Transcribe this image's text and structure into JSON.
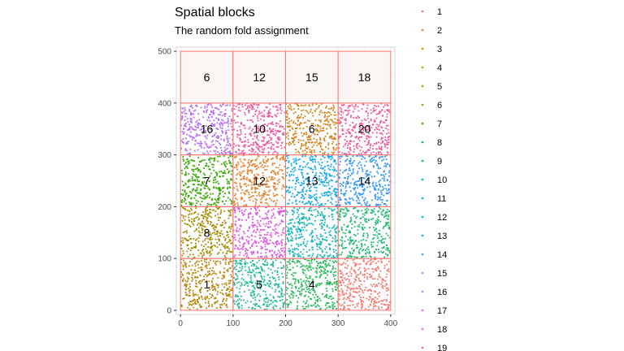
{
  "chart_data": {
    "type": "scatter",
    "title": "Spatial blocks",
    "subtitle": "The random fold assignment",
    "xlim": [
      -8,
      408
    ],
    "ylim": [
      -8,
      508
    ],
    "x_ticks": [
      0,
      100,
      200,
      300,
      400
    ],
    "y_ticks": [
      0,
      100,
      200,
      300,
      400,
      500
    ],
    "grid": true,
    "legend_position": "right",
    "legend": [
      {
        "label": "1",
        "color": "#F8766D"
      },
      {
        "label": "2",
        "color": "#EA8331"
      },
      {
        "label": "3",
        "color": "#D89000"
      },
      {
        "label": "4",
        "color": "#C09B00"
      },
      {
        "label": "5",
        "color": "#A3A500"
      },
      {
        "label": "6",
        "color": "#7CAE00"
      },
      {
        "label": "7",
        "color": "#39B600"
      },
      {
        "label": "8",
        "color": "#00BB4E"
      },
      {
        "label": "9",
        "color": "#00BF7D"
      },
      {
        "label": "10",
        "color": "#00C1A3"
      },
      {
        "label": "11",
        "color": "#00BFC4"
      },
      {
        "label": "12",
        "color": "#00BAE0"
      },
      {
        "label": "13",
        "color": "#00B0F6"
      },
      {
        "label": "14",
        "color": "#35A2FF"
      },
      {
        "label": "15",
        "color": "#9590FF"
      },
      {
        "label": "16",
        "color": "#C77CFF"
      },
      {
        "label": "17",
        "color": "#E76BF3"
      },
      {
        "label": "18",
        "color": "#FA62DB"
      },
      {
        "label": "19",
        "color": "#FF62BC"
      }
    ],
    "blocks": [
      {
        "label": "1",
        "x0": 0,
        "x1": 100,
        "y0": 0,
        "y1": 100,
        "color": "#B8860B"
      },
      {
        "label": "5",
        "x0": 100,
        "x1": 200,
        "y0": 0,
        "y1": 100,
        "color": "#20B99A"
      },
      {
        "label": "4",
        "x0": 200,
        "x1": 300,
        "y0": 0,
        "y1": 100,
        "color": "#1DB954"
      },
      {
        "label": "",
        "x0": 300,
        "x1": 400,
        "y0": 0,
        "y1": 100,
        "color": "#F8766D"
      },
      {
        "label": "8",
        "x0": 0,
        "x1": 100,
        "y0": 100,
        "y1": 200,
        "color": "#A68C00"
      },
      {
        "label": "",
        "x0": 100,
        "x1": 200,
        "y0": 100,
        "y1": 200,
        "color": "#E055E8"
      },
      {
        "label": "",
        "x0": 200,
        "x1": 300,
        "y0": 100,
        "y1": 200,
        "color": "#12B5BA"
      },
      {
        "label": "",
        "x0": 300,
        "x1": 400,
        "y0": 100,
        "y1": 200,
        "color": "#1DBB72"
      },
      {
        "label": "7",
        "x0": 0,
        "x1": 100,
        "y0": 200,
        "y1": 300,
        "color": "#38A800"
      },
      {
        "label": "12",
        "x0": 100,
        "x1": 200,
        "y0": 200,
        "y1": 300,
        "color": "#E8822E"
      },
      {
        "label": "13",
        "x0": 200,
        "x1": 300,
        "y0": 200,
        "y1": 300,
        "color": "#11A9EE"
      },
      {
        "label": "14",
        "x0": 300,
        "x1": 400,
        "y0": 200,
        "y1": 300,
        "color": "#3196FF"
      },
      {
        "label": "16",
        "x0": 0,
        "x1": 100,
        "y0": 300,
        "y1": 400,
        "color": "#B76CF4"
      },
      {
        "label": "10",
        "x0": 100,
        "x1": 200,
        "y0": 300,
        "y1": 400,
        "color": "#F0589E"
      },
      {
        "label": "6",
        "x0": 200,
        "x1": 300,
        "y0": 300,
        "y1": 400,
        "color": "#D2841C"
      },
      {
        "label": "20",
        "x0": 300,
        "x1": 400,
        "y0": 300,
        "y1": 400,
        "color": "#F2559A"
      },
      {
        "label": "6",
        "x0": 0,
        "x1": 100,
        "y0": 400,
        "y1": 500,
        "color": null
      },
      {
        "label": "12",
        "x0": 100,
        "x1": 200,
        "y0": 400,
        "y1": 500,
        "color": null
      },
      {
        "label": "15",
        "x0": 200,
        "x1": 300,
        "y0": 400,
        "y1": 500,
        "color": null
      },
      {
        "label": "18",
        "x0": 300,
        "x1": 400,
        "y0": 400,
        "y1": 500,
        "color": null
      }
    ],
    "colors": {
      "block_border": "#F8766D",
      "empty_block_fill": "#FBF5F4",
      "panel_background": "#FFFFFF",
      "grid": "#EBEBEB",
      "panel_border": "#C9C9C9"
    }
  }
}
